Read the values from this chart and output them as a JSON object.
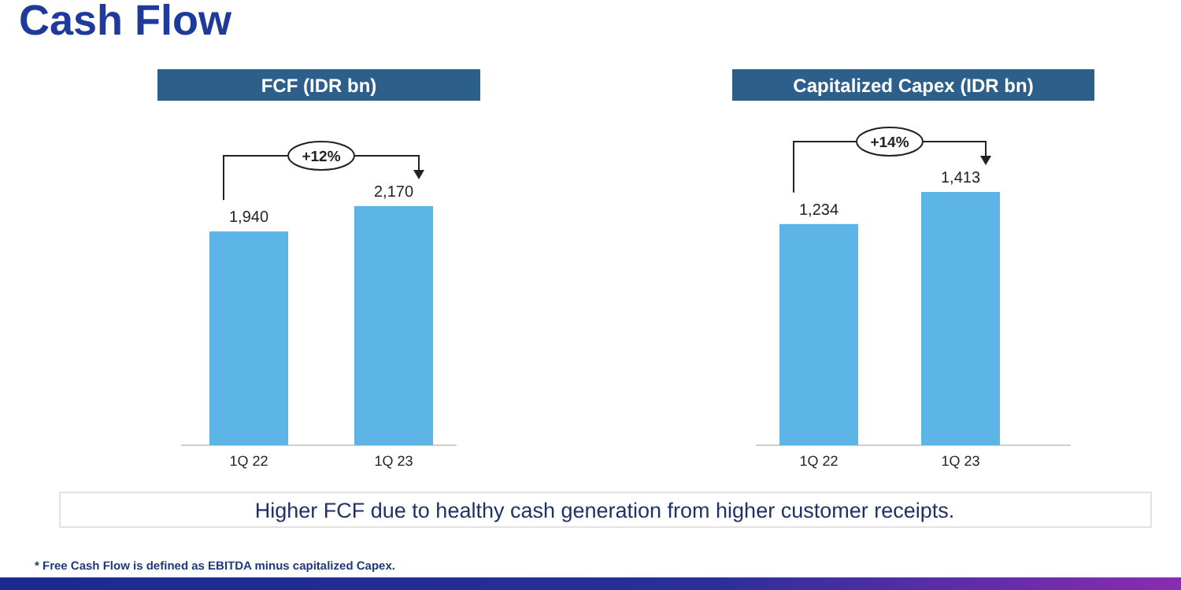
{
  "chart_data": [
    {
      "type": "bar",
      "title": "FCF (IDR bn)",
      "categories": [
        "1Q 22",
        "1Q 23"
      ],
      "values": [
        1940,
        2170
      ],
      "value_labels": [
        "1,940",
        "2,170"
      ],
      "color": "#5db4e6",
      "annotations": [
        "+12%"
      ]
    },
    {
      "type": "bar",
      "title": "Capitalized Capex (IDR bn)",
      "categories": [
        "1Q 22",
        "1Q 23"
      ],
      "values": [
        1234,
        1413
      ],
      "value_labels": [
        "1,234",
        "1,413"
      ],
      "color": "#5db4e6",
      "annotations": [
        "+14%"
      ]
    },
    {
      "type": "other",
      "title": "Cash Flow",
      "annotations": [
        "Higher FCF due to healthy cash generation from higher customer receipts.",
        "* Free Cash Flow is defined as EBITDA minus capitalized Capex."
      ]
    }
  ]
}
